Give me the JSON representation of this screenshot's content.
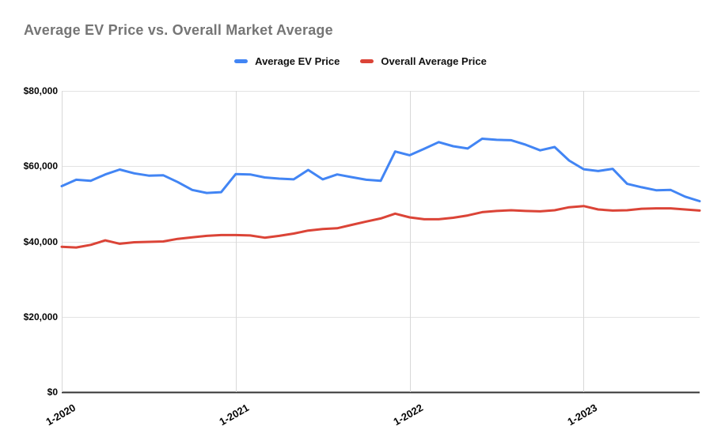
{
  "chart": {
    "title": "Average EV Price vs. Overall Market Average"
  },
  "legend": {
    "items": [
      {
        "label": "Average EV Price",
        "color": "#4285f4"
      },
      {
        "label": "Overall Average Price",
        "color": "#db4437"
      }
    ]
  },
  "chart_data": {
    "type": "line",
    "title": "Average EV Price vs. Overall Market Average",
    "xlabel": "",
    "ylabel": "",
    "grid": true,
    "legend_position": "top-center",
    "ylim": [
      0,
      80000
    ],
    "y_ticks": [
      {
        "value": 0,
        "label": "$0"
      },
      {
        "value": 20000,
        "label": "$20,000"
      },
      {
        "value": 40000,
        "label": "$40,000"
      },
      {
        "value": 60000,
        "label": "$60,000"
      },
      {
        "value": 80000,
        "label": "$80,000"
      }
    ],
    "x": [
      "1-2020",
      "2-2020",
      "3-2020",
      "4-2020",
      "5-2020",
      "6-2020",
      "7-2020",
      "8-2020",
      "9-2020",
      "10-2020",
      "11-2020",
      "12-2020",
      "1-2021",
      "2-2021",
      "3-2021",
      "4-2021",
      "5-2021",
      "6-2021",
      "7-2021",
      "8-2021",
      "9-2021",
      "10-2021",
      "11-2021",
      "12-2021",
      "1-2022",
      "2-2022",
      "3-2022",
      "4-2022",
      "5-2022",
      "6-2022",
      "7-2022",
      "8-2022",
      "9-2022",
      "10-2022",
      "11-2022",
      "12-2022",
      "1-2023",
      "2-2023",
      "3-2023",
      "4-2023",
      "5-2023",
      "6-2023",
      "7-2023",
      "8-2023",
      "9-2023"
    ],
    "x_tick_indices": [
      0,
      12,
      24,
      36
    ],
    "x_tick_labels": [
      "1-2020",
      "1-2021",
      "1-2022",
      "1-2023"
    ],
    "series": [
      {
        "name": "Average EV Price",
        "color": "#4285f4",
        "values": [
          54700,
          56400,
          56100,
          57800,
          59100,
          58100,
          57500,
          57600,
          55800,
          53700,
          52900,
          53100,
          57900,
          57800,
          57000,
          56700,
          56500,
          59000,
          56500,
          57800,
          57100,
          56400,
          56100,
          63900,
          62900,
          64600,
          66400,
          65300,
          64700,
          67300,
          67000,
          66900,
          65700,
          64200,
          65100,
          61500,
          59200,
          58700,
          59300,
          55300,
          54400,
          53600,
          53700,
          51900,
          50700
        ]
      },
      {
        "name": "Overall Average Price",
        "color": "#db4437",
        "values": [
          38600,
          38400,
          39100,
          40300,
          39400,
          39800,
          39900,
          40000,
          40700,
          41100,
          41500,
          41700,
          41700,
          41600,
          41000,
          41500,
          42100,
          42900,
          43300,
          43500,
          44400,
          45300,
          46100,
          47400,
          46400,
          45900,
          45900,
          46300,
          46900,
          47800,
          48100,
          48300,
          48100,
          48000,
          48300,
          49100,
          49400,
          48500,
          48200,
          48300,
          48700,
          48800,
          48800,
          48500,
          48200
        ]
      }
    ]
  },
  "colors": {
    "background": "#ffffff",
    "title_text": "#757575",
    "tick_text": "#050505",
    "gridline": "#e3e3e3",
    "vertical_gridline": "#d8d8d8",
    "axis_line": "#333333",
    "series_ev": "#4285f4",
    "series_overall": "#db4437"
  }
}
